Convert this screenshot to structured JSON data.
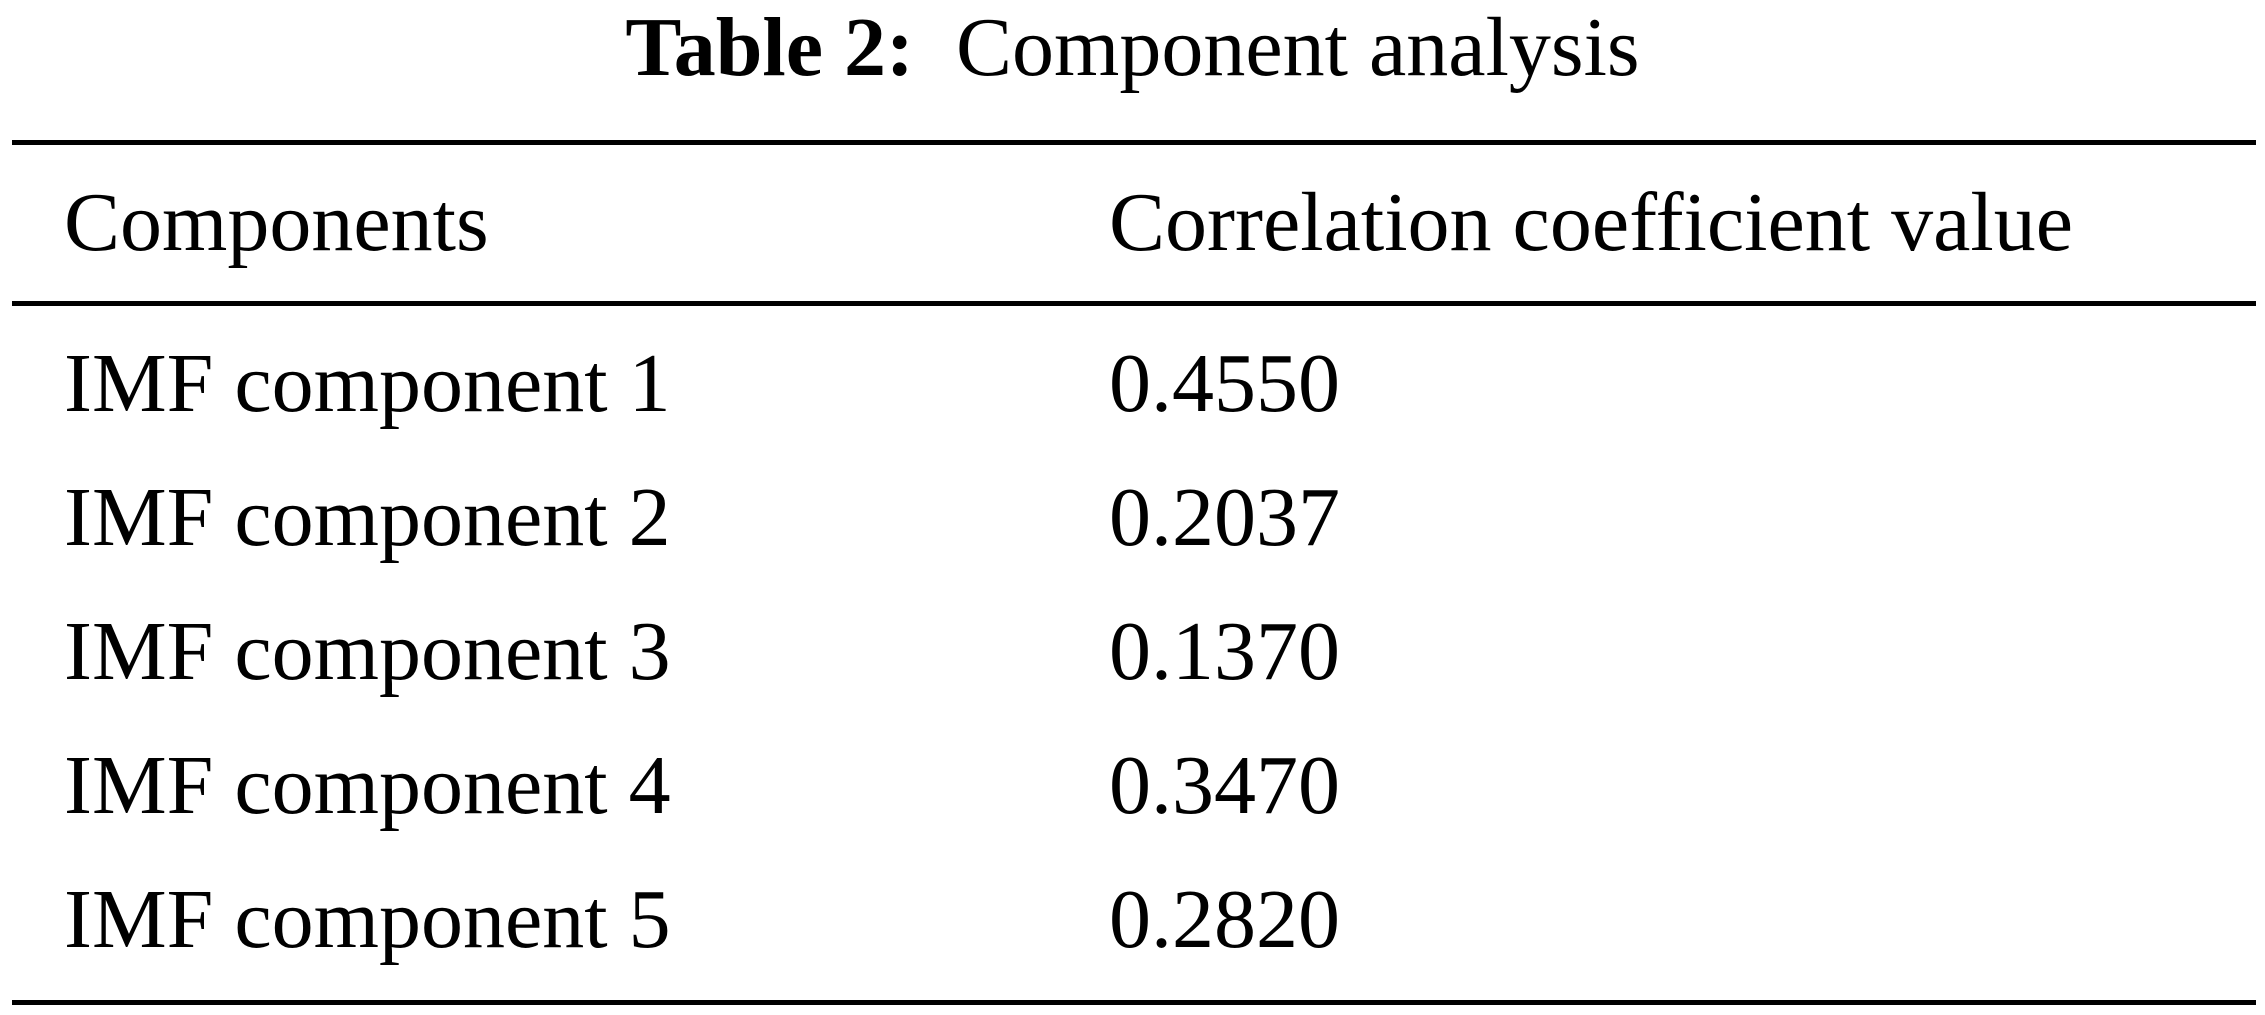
{
  "table": {
    "caption_label": "Table 2:",
    "caption_title": "Component analysis",
    "columns": [
      "Components",
      "Correlation coefficient value"
    ],
    "rows": [
      [
        "IMF component 1",
        "0.4550"
      ],
      [
        "IMF component 2",
        "0.2037"
      ],
      [
        "IMF component 3",
        "0.1370"
      ],
      [
        "IMF component 4",
        "0.3470"
      ],
      [
        "IMF component 5",
        "0.2820"
      ]
    ]
  }
}
